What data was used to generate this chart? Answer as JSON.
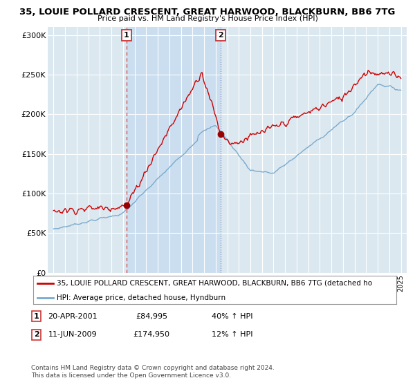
{
  "title": "35, LOUIE POLLARD CRESCENT, GREAT HARWOOD, BLACKBURN, BB6 7TG",
  "subtitle": "Price paid vs. HM Land Registry's House Price Index (HPI)",
  "ylabel_ticks": [
    "£0",
    "£50K",
    "£100K",
    "£150K",
    "£200K",
    "£250K",
    "£300K"
  ],
  "ytick_vals": [
    0,
    50000,
    100000,
    150000,
    200000,
    250000,
    300000
  ],
  "ylim": [
    0,
    310000
  ],
  "sale1_date": "20-APR-2001",
  "sale1_price": 84995,
  "sale1_hpi": "40% ↑ HPI",
  "sale1_year": 2001.3,
  "sale2_date": "11-JUN-2009",
  "sale2_price": 174950,
  "sale2_hpi": "12% ↑ HPI",
  "sale2_year": 2009.45,
  "legend_line1": "35, LOUIE POLLARD CRESCENT, GREAT HARWOOD, BLACKBURN, BB6 7TG (detached ho",
  "legend_line2": "HPI: Average price, detached house, Hyndburn",
  "footer": "Contains HM Land Registry data © Crown copyright and database right 2024.\nThis data is licensed under the Open Government Licence v3.0.",
  "line_color_red": "#cc0000",
  "line_color_blue": "#7aaacc",
  "background_plot": "#dce8f0",
  "shade_color": "#c8ddf0",
  "background_fig": "#ffffff",
  "grid_color": "#ffffff",
  "annotation_box_color": "#cc3333",
  "xlim_start": 1994.5,
  "xlim_end": 2025.5
}
